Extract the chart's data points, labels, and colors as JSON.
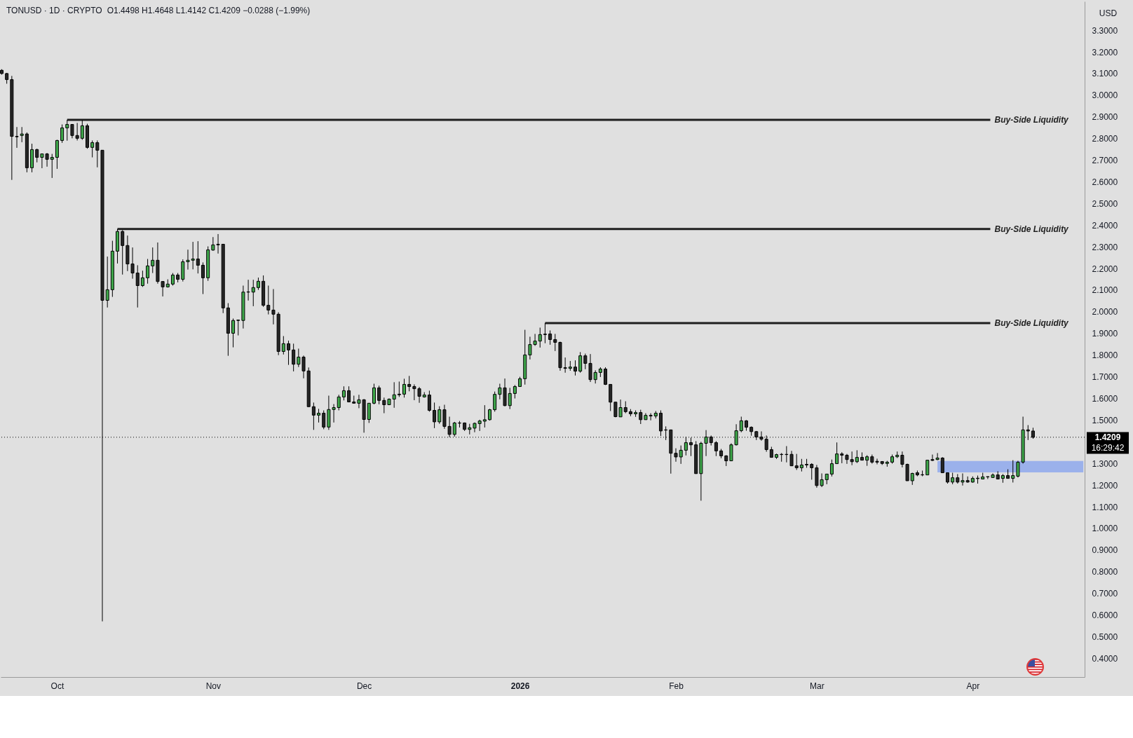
{
  "chart_data": {
    "type": "candlestick",
    "title": "TONUSD · 1D · CRYPTO",
    "subtitle": "O1.4498 H1.4648 L1.4142 C1.4209 −0.0288 (−1.99%)",
    "ylabel": "USD",
    "xlim": [
      "2025-09-19T19:00",
      "2026-04-23T06:00"
    ],
    "ylim": [
      0.314,
      3.433
    ],
    "xticks": [
      {
        "value": "2025-10-01",
        "label": "Oct"
      },
      {
        "value": "2025-11-01",
        "label": "Nov"
      },
      {
        "value": "2025-12-01",
        "label": "Dec"
      },
      {
        "value": "2026-01-01",
        "label": "2026"
      },
      {
        "value": "2026-02-01",
        "label": "Feb"
      },
      {
        "value": "2026-03-01",
        "label": "Mar"
      },
      {
        "value": "2026-04-01",
        "label": "Apr"
      }
    ],
    "yticks": [
      {
        "value": 0.4,
        "label": "0.4000"
      },
      {
        "value": 0.5,
        "label": "0.5000"
      },
      {
        "value": 0.6,
        "label": "0.6000"
      },
      {
        "value": 0.7,
        "label": "0.7000"
      },
      {
        "value": 0.8,
        "label": "0.8000"
      },
      {
        "value": 0.9,
        "label": "0.9000"
      },
      {
        "value": 1.0,
        "label": "1.0000"
      },
      {
        "value": 1.1,
        "label": "1.1000"
      },
      {
        "value": 1.2,
        "label": "1.2000"
      },
      {
        "value": 1.3,
        "label": "1.3000"
      },
      {
        "value": 1.5,
        "label": "1.5000"
      },
      {
        "value": 1.6,
        "label": "1.6000"
      },
      {
        "value": 1.7,
        "label": "1.7000"
      },
      {
        "value": 1.8,
        "label": "1.8000"
      },
      {
        "value": 1.9,
        "label": "1.9000"
      },
      {
        "value": 2.0,
        "label": "2.0000"
      },
      {
        "value": 2.1,
        "label": "2.1000"
      },
      {
        "value": 2.2,
        "label": "2.2000"
      },
      {
        "value": 2.3,
        "label": "2.3000"
      },
      {
        "value": 2.4,
        "label": "2.4000"
      },
      {
        "value": 2.5,
        "label": "2.5000"
      },
      {
        "value": 2.6,
        "label": "2.6000"
      },
      {
        "value": 2.7,
        "label": "2.7000"
      },
      {
        "value": 2.8,
        "label": "2.8000"
      },
      {
        "value": 2.9,
        "label": "2.9000"
      },
      {
        "value": 3.0,
        "label": "3.0000"
      },
      {
        "value": 3.1,
        "label": "3.1000"
      },
      {
        "value": 3.2,
        "label": "3.2000"
      },
      {
        "value": 3.3,
        "label": "3.3000"
      }
    ],
    "x": [
      "2025-09-20",
      "2025-09-21",
      "2025-09-22",
      "2025-09-23",
      "2025-09-24",
      "2025-09-25",
      "2025-09-26",
      "2025-09-27",
      "2025-09-28",
      "2025-09-29",
      "2025-09-30",
      "2025-10-01",
      "2025-10-02",
      "2025-10-03",
      "2025-10-04",
      "2025-10-05",
      "2025-10-06",
      "2025-10-07",
      "2025-10-08",
      "2025-10-09",
      "2025-10-10",
      "2025-10-11",
      "2025-10-12",
      "2025-10-13",
      "2025-10-14",
      "2025-10-15",
      "2025-10-16",
      "2025-10-17",
      "2025-10-18",
      "2025-10-19",
      "2025-10-20",
      "2025-10-21",
      "2025-10-22",
      "2025-10-23",
      "2025-10-24",
      "2025-10-25",
      "2025-10-26",
      "2025-10-27",
      "2025-10-28",
      "2025-10-29",
      "2025-10-30",
      "2025-10-31",
      "2025-11-01",
      "2025-11-02",
      "2025-11-03",
      "2025-11-04",
      "2025-11-05",
      "2025-11-06",
      "2025-11-07",
      "2025-11-08",
      "2025-11-09",
      "2025-11-10",
      "2025-11-11",
      "2025-11-12",
      "2025-11-13",
      "2025-11-14",
      "2025-11-15",
      "2025-11-16",
      "2025-11-17",
      "2025-11-18",
      "2025-11-19",
      "2025-11-20",
      "2025-11-21",
      "2025-11-22",
      "2025-11-23",
      "2025-11-24",
      "2025-11-25",
      "2025-11-26",
      "2025-11-27",
      "2025-11-28",
      "2025-11-29",
      "2025-11-30",
      "2025-12-01",
      "2025-12-02",
      "2025-12-03",
      "2025-12-04",
      "2025-12-05",
      "2025-12-06",
      "2025-12-07",
      "2025-12-08",
      "2025-12-09",
      "2025-12-10",
      "2025-12-11",
      "2025-12-12",
      "2025-12-13",
      "2025-12-14",
      "2025-12-15",
      "2025-12-16",
      "2025-12-17",
      "2025-12-18",
      "2025-12-19",
      "2025-12-20",
      "2025-12-21",
      "2025-12-22",
      "2025-12-23",
      "2025-12-24",
      "2025-12-25",
      "2025-12-26",
      "2025-12-27",
      "2025-12-28",
      "2025-12-29",
      "2025-12-30",
      "2025-12-31",
      "2026-01-01",
      "2026-01-02",
      "2026-01-03",
      "2026-01-04",
      "2026-01-05",
      "2026-01-06",
      "2026-01-07",
      "2026-01-08",
      "2026-01-09",
      "2026-01-10",
      "2026-01-11",
      "2026-01-12",
      "2026-01-13",
      "2026-01-14",
      "2026-01-15",
      "2026-01-16",
      "2026-01-17",
      "2026-01-18",
      "2026-01-19",
      "2026-01-20",
      "2026-01-21",
      "2026-01-22",
      "2026-01-23",
      "2026-01-24",
      "2026-01-25",
      "2026-01-26",
      "2026-01-27",
      "2026-01-28",
      "2026-01-29",
      "2026-01-30",
      "2026-01-31",
      "2026-02-01",
      "2026-02-02",
      "2026-02-03",
      "2026-02-04",
      "2026-02-05",
      "2026-02-06",
      "2026-02-07",
      "2026-02-08",
      "2026-02-09",
      "2026-02-10",
      "2026-02-11",
      "2026-02-12",
      "2026-02-13",
      "2026-02-14",
      "2026-02-15",
      "2026-02-16",
      "2026-02-17",
      "2026-02-18",
      "2026-02-19",
      "2026-02-20",
      "2026-02-21",
      "2026-02-22",
      "2026-02-23",
      "2026-02-24",
      "2026-02-25",
      "2026-02-26",
      "2026-02-27",
      "2026-02-28",
      "2026-03-01",
      "2026-03-02",
      "2026-03-03",
      "2026-03-04",
      "2026-03-05",
      "2026-03-06",
      "2026-03-07",
      "2026-03-08",
      "2026-03-09",
      "2026-03-10",
      "2026-03-11",
      "2026-03-12",
      "2026-03-13",
      "2026-03-14",
      "2026-03-15",
      "2026-03-16",
      "2026-03-17",
      "2026-03-18",
      "2026-03-19",
      "2026-03-20",
      "2026-03-21",
      "2026-03-22",
      "2026-03-23",
      "2026-03-24",
      "2026-03-25",
      "2026-03-26",
      "2026-03-27",
      "2026-03-28",
      "2026-03-29",
      "2026-03-30",
      "2026-03-31",
      "2026-04-01",
      "2026-04-02",
      "2026-04-03",
      "2026-04-04",
      "2026-04-05",
      "2026-04-06",
      "2026-04-07",
      "2026-04-08",
      "2026-04-09",
      "2026-04-10",
      "2026-04-11",
      "2026-04-12",
      "2026-04-13"
    ],
    "ohlc": [
      [
        3.115,
        3.12,
        3.095,
        3.1
      ],
      [
        3.1,
        3.103,
        3.053,
        3.072
      ],
      [
        3.072,
        3.089,
        2.609,
        2.81
      ],
      [
        2.81,
        2.853,
        2.757,
        2.808
      ],
      [
        2.814,
        2.853,
        2.783,
        2.821
      ],
      [
        2.821,
        2.828,
        2.644,
        2.665
      ],
      [
        2.665,
        2.776,
        2.644,
        2.749
      ],
      [
        2.749,
        2.753,
        2.69,
        2.713
      ],
      [
        2.713,
        2.729,
        2.663,
        2.729
      ],
      [
        2.729,
        2.733,
        2.67,
        2.704
      ],
      [
        2.704,
        2.729,
        2.618,
        2.713
      ],
      [
        2.713,
        2.794,
        2.66,
        2.791
      ],
      [
        2.791,
        2.865,
        2.78,
        2.849
      ],
      [
        2.849,
        2.886,
        2.79,
        2.865
      ],
      [
        2.865,
        2.865,
        2.801,
        2.814
      ],
      [
        2.814,
        2.872,
        2.791,
        2.801
      ],
      [
        2.801,
        2.885,
        2.794,
        2.859
      ],
      [
        2.859,
        2.868,
        2.753,
        2.759
      ],
      [
        2.759,
        2.791,
        2.713,
        2.781
      ],
      [
        2.781,
        2.791,
        2.667,
        2.746
      ],
      [
        2.746,
        2.746,
        0.571,
        2.053
      ],
      [
        2.053,
        2.255,
        2.02,
        2.102
      ],
      [
        2.102,
        2.328,
        2.069,
        2.28
      ],
      [
        2.28,
        2.382,
        2.223,
        2.371
      ],
      [
        2.371,
        2.377,
        2.172,
        2.306
      ],
      [
        2.306,
        2.352,
        2.188,
        2.221
      ],
      [
        2.221,
        2.297,
        2.153,
        2.179
      ],
      [
        2.179,
        2.215,
        2.02,
        2.121
      ],
      [
        2.121,
        2.19,
        2.115,
        2.157
      ],
      [
        2.157,
        2.244,
        2.13,
        2.212
      ],
      [
        2.212,
        2.297,
        2.179,
        2.238
      ],
      [
        2.238,
        2.32,
        2.13,
        2.14
      ],
      [
        2.14,
        2.14,
        2.071,
        2.115
      ],
      [
        2.115,
        2.15,
        2.112,
        2.128
      ],
      [
        2.128,
        2.179,
        2.121,
        2.17
      ],
      [
        2.17,
        2.179,
        2.136,
        2.15
      ],
      [
        2.15,
        2.242,
        2.14,
        2.231
      ],
      [
        2.231,
        2.287,
        2.195,
        2.238
      ],
      [
        2.238,
        2.323,
        2.196,
        2.244
      ],
      [
        2.244,
        2.326,
        2.177,
        2.215
      ],
      [
        2.215,
        2.228,
        2.082,
        2.157
      ],
      [
        2.157,
        2.302,
        2.143,
        2.286
      ],
      [
        2.285,
        2.345,
        2.282,
        2.309
      ],
      [
        2.309,
        2.359,
        2.269,
        2.312
      ],
      [
        2.312,
        2.312,
        1.994,
        2.018
      ],
      [
        2.018,
        2.04,
        1.797,
        1.901
      ],
      [
        1.901,
        1.969,
        1.836,
        1.96
      ],
      [
        1.96,
        1.964,
        1.891,
        1.962
      ],
      [
        1.96,
        2.121,
        1.923,
        2.091
      ],
      [
        2.091,
        2.148,
        2.052,
        2.092
      ],
      [
        2.091,
        2.148,
        2.026,
        2.112
      ],
      [
        2.112,
        2.158,
        2.101,
        2.141
      ],
      [
        2.141,
        2.168,
        2.023,
        2.03
      ],
      [
        2.03,
        2.121,
        1.988,
        2.008
      ],
      [
        2.008,
        2.105,
        1.942,
        1.989
      ],
      [
        1.989,
        1.998,
        1.8,
        1.817
      ],
      [
        1.817,
        1.888,
        1.803,
        1.853
      ],
      [
        1.853,
        1.867,
        1.755,
        1.824
      ],
      [
        1.824,
        1.853,
        1.725,
        1.758
      ],
      [
        1.758,
        1.83,
        1.745,
        1.791
      ],
      [
        1.791,
        1.798,
        1.693,
        1.727
      ],
      [
        1.727,
        1.743,
        1.562,
        1.562
      ],
      [
        1.562,
        1.581,
        1.455,
        1.523
      ],
      [
        1.523,
        1.552,
        1.489,
        1.532
      ],
      [
        1.532,
        1.545,
        1.458,
        1.468
      ],
      [
        1.468,
        1.613,
        1.455,
        1.549
      ],
      [
        1.549,
        1.574,
        1.489,
        1.558
      ],
      [
        1.558,
        1.617,
        1.545,
        1.607
      ],
      [
        1.607,
        1.656,
        1.591,
        1.636
      ],
      [
        1.636,
        1.656,
        1.584,
        1.584
      ],
      [
        1.584,
        1.613,
        1.578,
        1.578
      ],
      [
        1.578,
        1.617,
        1.555,
        1.594
      ],
      [
        1.594,
        1.597,
        1.442,
        1.503
      ],
      [
        1.503,
        1.578,
        1.487,
        1.578
      ],
      [
        1.578,
        1.668,
        1.573,
        1.649
      ],
      [
        1.649,
        1.659,
        1.573,
        1.591
      ],
      [
        1.591,
        1.604,
        1.532,
        1.571
      ],
      [
        1.571,
        1.6,
        1.571,
        1.597
      ],
      [
        1.597,
        1.675,
        1.557,
        1.617
      ],
      [
        1.62,
        1.678,
        1.607,
        1.617
      ],
      [
        1.62,
        1.691,
        1.604,
        1.665
      ],
      [
        1.665,
        1.704,
        1.633,
        1.655
      ],
      [
        1.655,
        1.665,
        1.592,
        1.645
      ],
      [
        1.645,
        1.653,
        1.58,
        1.61
      ],
      [
        1.607,
        1.629,
        1.604,
        1.616
      ],
      [
        1.616,
        1.636,
        1.539,
        1.545
      ],
      [
        1.545,
        1.581,
        1.463,
        1.492
      ],
      [
        1.492,
        1.564,
        1.483,
        1.548
      ],
      [
        1.548,
        1.571,
        1.46,
        1.471
      ],
      [
        1.471,
        1.516,
        1.421,
        1.434
      ],
      [
        1.434,
        1.492,
        1.424,
        1.487
      ],
      [
        1.487,
        1.496,
        1.466,
        1.486
      ],
      [
        1.487,
        1.489,
        1.45,
        1.457
      ],
      [
        1.457,
        1.483,
        1.434,
        1.465
      ],
      [
        1.463,
        1.489,
        1.444,
        1.485
      ],
      [
        1.484,
        1.502,
        1.45,
        1.496
      ],
      [
        1.495,
        1.569,
        1.466,
        1.502
      ],
      [
        1.502,
        1.552,
        1.498,
        1.548
      ],
      [
        1.548,
        1.632,
        1.539,
        1.619
      ],
      [
        1.619,
        1.668,
        1.596,
        1.649
      ],
      [
        1.649,
        1.692,
        1.564,
        1.567
      ],
      [
        1.567,
        1.649,
        1.551,
        1.623
      ],
      [
        1.623,
        1.662,
        1.6,
        1.655
      ],
      [
        1.655,
        1.7,
        1.655,
        1.691
      ],
      [
        1.691,
        1.917,
        1.664,
        1.801
      ],
      [
        1.801,
        1.885,
        1.78,
        1.849
      ],
      [
        1.849,
        1.898,
        1.843,
        1.865
      ],
      [
        1.865,
        1.927,
        1.835,
        1.895
      ],
      [
        1.897,
        1.948,
        1.855,
        1.895
      ],
      [
        1.898,
        1.914,
        1.848,
        1.872
      ],
      [
        1.872,
        1.898,
        1.819,
        1.859
      ],
      [
        1.859,
        1.862,
        1.728,
        1.742
      ],
      [
        1.742,
        1.789,
        1.719,
        1.739
      ],
      [
        1.739,
        1.773,
        1.728,
        1.745
      ],
      [
        1.745,
        1.776,
        1.706,
        1.726
      ],
      [
        1.726,
        1.814,
        1.719,
        1.797
      ],
      [
        1.797,
        1.807,
        1.735,
        1.762
      ],
      [
        1.762,
        1.805,
        1.676,
        1.687
      ],
      [
        1.687,
        1.73,
        1.669,
        1.72
      ],
      [
        1.72,
        1.744,
        1.699,
        1.736
      ],
      [
        1.736,
        1.744,
        1.662,
        1.665
      ],
      [
        1.665,
        1.665,
        1.542,
        1.583
      ],
      [
        1.583,
        1.583,
        1.513,
        1.516
      ],
      [
        1.515,
        1.595,
        1.515,
        1.558
      ],
      [
        1.558,
        1.587,
        1.532,
        1.539
      ],
      [
        1.539,
        1.551,
        1.518,
        1.529
      ],
      [
        1.529,
        1.545,
        1.515,
        1.535
      ],
      [
        1.535,
        1.548,
        1.482,
        1.502
      ],
      [
        1.502,
        1.532,
        1.502,
        1.522
      ],
      [
        1.522,
        1.532,
        1.499,
        1.519
      ],
      [
        1.519,
        1.542,
        1.508,
        1.532
      ],
      [
        1.532,
        1.545,
        1.427,
        1.45
      ],
      [
        1.455,
        1.471,
        1.408,
        1.454
      ],
      [
        1.455,
        1.455,
        1.253,
        1.347
      ],
      [
        1.347,
        1.37,
        1.308,
        1.33
      ],
      [
        1.33,
        1.383,
        1.298,
        1.361
      ],
      [
        1.361,
        1.423,
        1.337,
        1.396
      ],
      [
        1.396,
        1.419,
        1.334,
        1.386
      ],
      [
        1.386,
        1.403,
        1.253,
        1.253
      ],
      [
        1.253,
        1.4,
        1.128,
        1.393
      ],
      [
        1.393,
        1.454,
        1.334,
        1.422
      ],
      [
        1.422,
        1.429,
        1.383,
        1.396
      ],
      [
        1.396,
        1.403,
        1.334,
        1.358
      ],
      [
        1.358,
        1.367,
        1.324,
        1.335
      ],
      [
        1.335,
        1.338,
        1.288,
        1.312
      ],
      [
        1.312,
        1.393,
        1.312,
        1.386
      ],
      [
        1.386,
        1.481,
        1.383,
        1.451
      ],
      [
        1.451,
        1.516,
        1.444,
        1.497
      ],
      [
        1.497,
        1.5,
        1.451,
        1.467
      ],
      [
        1.467,
        1.471,
        1.428,
        1.447
      ],
      [
        1.447,
        1.45,
        1.408,
        1.422
      ],
      [
        1.422,
        1.448,
        1.405,
        1.412
      ],
      [
        1.412,
        1.429,
        1.354,
        1.364
      ],
      [
        1.364,
        1.377,
        1.328,
        1.328
      ],
      [
        1.328,
        1.345,
        1.321,
        1.341
      ],
      [
        1.342,
        1.348,
        1.308,
        1.341
      ],
      [
        1.341,
        1.38,
        1.305,
        1.342
      ],
      [
        1.342,
        1.358,
        1.289,
        1.289
      ],
      [
        1.289,
        1.344,
        1.27,
        1.28
      ],
      [
        1.28,
        1.321,
        1.263,
        1.293
      ],
      [
        1.296,
        1.321,
        1.28,
        1.293
      ],
      [
        1.296,
        1.301,
        1.225,
        1.28
      ],
      [
        1.28,
        1.293,
        1.188,
        1.198
      ],
      [
        1.198,
        1.254,
        1.191,
        1.225
      ],
      [
        1.225,
        1.251,
        1.204,
        1.251
      ],
      [
        1.251,
        1.318,
        1.24,
        1.299
      ],
      [
        1.299,
        1.397,
        1.299,
        1.344
      ],
      [
        1.344,
        1.352,
        1.301,
        1.338
      ],
      [
        1.338,
        1.344,
        1.298,
        1.318
      ],
      [
        1.318,
        1.355,
        1.292,
        1.308
      ],
      [
        1.308,
        1.361,
        1.302,
        1.328
      ],
      [
        1.328,
        1.351,
        1.315,
        1.315
      ],
      [
        1.315,
        1.338,
        1.289,
        1.331
      ],
      [
        1.331,
        1.341,
        1.299,
        1.306
      ],
      [
        1.31,
        1.322,
        1.296,
        1.306
      ],
      [
        1.309,
        1.309,
        1.293,
        1.3
      ],
      [
        1.3,
        1.312,
        1.285,
        1.306
      ],
      [
        1.306,
        1.341,
        1.299,
        1.331
      ],
      [
        1.331,
        1.355,
        1.325,
        1.338
      ],
      [
        1.338,
        1.355,
        1.282,
        1.296
      ],
      [
        1.296,
        1.299,
        1.22,
        1.22
      ],
      [
        1.22,
        1.257,
        1.201,
        1.254
      ],
      [
        1.257,
        1.267,
        1.241,
        1.247
      ],
      [
        1.247,
        1.267,
        1.241,
        1.248
      ],
      [
        1.247,
        1.315,
        1.247,
        1.315
      ],
      [
        1.318,
        1.341,
        1.311,
        1.314
      ],
      [
        1.318,
        1.348,
        1.315,
        1.325
      ],
      [
        1.325,
        1.329,
        1.257,
        1.257
      ],
      [
        1.257,
        1.257,
        1.207,
        1.214
      ],
      [
        1.214,
        1.257,
        1.204,
        1.234
      ],
      [
        1.234,
        1.251,
        1.207,
        1.214
      ],
      [
        1.214,
        1.254,
        1.198,
        1.221
      ],
      [
        1.221,
        1.24,
        1.211,
        1.214
      ],
      [
        1.214,
        1.24,
        1.211,
        1.231
      ],
      [
        1.23,
        1.244,
        1.207,
        1.232
      ],
      [
        1.228,
        1.257,
        1.228,
        1.238
      ],
      [
        1.239,
        1.239,
        1.228,
        1.238
      ],
      [
        1.235,
        1.254,
        1.235,
        1.247
      ],
      [
        1.247,
        1.264,
        1.228,
        1.228
      ],
      [
        1.231,
        1.251,
        1.211,
        1.244
      ],
      [
        1.244,
        1.273,
        1.231,
        1.231
      ],
      [
        1.231,
        1.315,
        1.212,
        1.244
      ],
      [
        1.241,
        1.312,
        1.235,
        1.306
      ],
      [
        1.306,
        1.516,
        1.299,
        1.455
      ],
      [
        1.455,
        1.477,
        1.408,
        1.4498
      ],
      [
        1.4498,
        1.4648,
        1.4142,
        1.4209
      ]
    ],
    "colors": [
      "#262626",
      "#262626",
      "#262626",
      "#262626",
      "#3fa94b",
      "#262626",
      "#3fa94b",
      "#262626",
      "#3fa94b",
      "#262626",
      "#3fa94b",
      "#3fa94b",
      "#3fa94b",
      "#3fa94b",
      "#262626",
      "#262626",
      "#3fa94b",
      "#262626",
      "#3fa94b",
      "#262626",
      "#262626",
      "#3fa94b",
      "#3fa94b",
      "#3fa94b",
      "#262626",
      "#262626",
      "#262626",
      "#262626",
      "#3fa94b",
      "#3fa94b",
      "#3fa94b",
      "#262626",
      "#262626",
      "#3fa94b",
      "#3fa94b",
      "#262626",
      "#3fa94b",
      "#3fa94b",
      "#3fa94b",
      "#262626",
      "#262626",
      "#3fa94b",
      "#3fa94b",
      "#3fa94b",
      "#262626",
      "#262626",
      "#3fa94b",
      "#3fa94b",
      "#3fa94b",
      "#3fa94b",
      "#3fa94b",
      "#3fa94b",
      "#262626",
      "#262626",
      "#262626",
      "#262626",
      "#3fa94b",
      "#262626",
      "#262626",
      "#3fa94b",
      "#262626",
      "#262626",
      "#262626",
      "#3fa94b",
      "#262626",
      "#3fa94b",
      "#3fa94b",
      "#3fa94b",
      "#3fa94b",
      "#262626",
      "#262626",
      "#3fa94b",
      "#262626",
      "#3fa94b",
      "#3fa94b",
      "#262626",
      "#262626",
      "#3fa94b",
      "#3fa94b",
      "#262626",
      "#3fa94b",
      "#262626",
      "#262626",
      "#262626",
      "#3fa94b",
      "#262626",
      "#262626",
      "#3fa94b",
      "#262626",
      "#262626",
      "#3fa94b",
      "#262626",
      "#262626",
      "#3fa94b",
      "#3fa94b",
      "#3fa94b",
      "#3fa94b",
      "#3fa94b",
      "#3fa94b",
      "#3fa94b",
      "#262626",
      "#3fa94b",
      "#3fa94b",
      "#3fa94b",
      "#3fa94b",
      "#3fa94b",
      "#3fa94b",
      "#3fa94b",
      "#262626",
      "#262626",
      "#262626",
      "#262626",
      "#262626",
      "#3fa94b",
      "#262626",
      "#3fa94b",
      "#262626",
      "#262626",
      "#3fa94b",
      "#3fa94b",
      "#262626",
      "#262626",
      "#262626",
      "#3fa94b",
      "#262626",
      "#262626",
      "#3fa94b",
      "#262626",
      "#3fa94b",
      "#262626",
      "#3fa94b",
      "#262626",
      "#262626",
      "#262626",
      "#262626",
      "#3fa94b",
      "#3fa94b",
      "#262626",
      "#262626",
      "#3fa94b",
      "#3fa94b",
      "#262626",
      "#262626",
      "#262626",
      "#262626",
      "#3fa94b",
      "#3fa94b",
      "#3fa94b",
      "#262626",
      "#262626",
      "#262626",
      "#262626",
      "#262626",
      "#262626",
      "#3fa94b",
      "#262626",
      "#3fa94b",
      "#262626",
      "#262626",
      "#3fa94b",
      "#262626",
      "#262626",
      "#262626",
      "#3fa94b",
      "#3fa94b",
      "#3fa94b",
      "#3fa94b",
      "#262626",
      "#262626",
      "#262626",
      "#3fa94b",
      "#262626",
      "#3fa94b",
      "#262626",
      "#262626",
      "#262626",
      "#3fa94b",
      "#3fa94b",
      "#3fa94b",
      "#262626",
      "#262626",
      "#3fa94b",
      "#262626",
      "#3fa94b",
      "#3fa94b",
      "#262626",
      "#3fa94b",
      "#262626",
      "#262626",
      "#3fa94b",
      "#262626",
      "#3fa94b",
      "#262626",
      "#3fa94b",
      "#3fa94b",
      "#3fa94b",
      "#262626",
      "#3fa94b",
      "#262626",
      "#3fa94b",
      "#262626",
      "#3fa94b",
      "#3fa94b",
      "#3fa94b",
      "#262626",
      "#262626"
    ],
    "series": [
      {
        "name": "Buy-Side Liquidity",
        "type": "line",
        "color": "#1f1f1f",
        "x": [
          "2025-10-03",
          "2026-04-04T12:00"
        ],
        "values": [
          2.886,
          2.886
        ]
      },
      {
        "name": "Buy-Side Liquidity",
        "type": "line",
        "color": "#1f1f1f",
        "x": [
          "2025-10-13",
          "2026-04-04T12:00"
        ],
        "values": [
          2.382,
          2.382
        ]
      },
      {
        "name": "Buy-Side Liquidity",
        "type": "line",
        "color": "#1f1f1f",
        "x": [
          "2026-01-06",
          "2026-04-04T12:00"
        ],
        "values": [
          1.948,
          1.948
        ]
      },
      {
        "type": "area",
        "color": "#9bb1eb",
        "x": [
          "2026-03-25",
          "2026-04-23"
        ],
        "values": [
          null,
          null
        ],
        "lower": [
          1.259,
          1.259
        ],
        "upper": [
          1.311,
          1.311
        ]
      }
    ],
    "ref_lines": [
      {
        "axis": "y",
        "value": 1.4209,
        "label": "1.4209",
        "color": "#000000",
        "line_style": "dotted"
      }
    ],
    "annotations": [
      "16:29:42"
    ]
  }
}
